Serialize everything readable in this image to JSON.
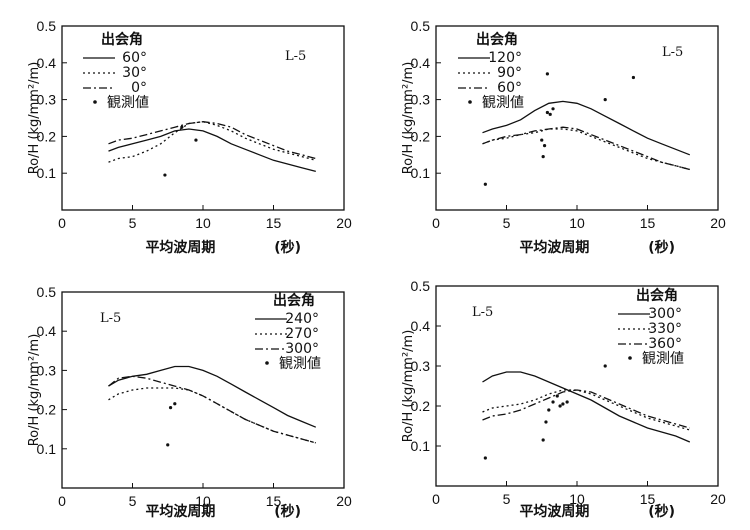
{
  "chart_data": [
    {
      "type": "line",
      "panel_code": "L-5",
      "ylabel": "Ro/H (kg/mm²/m)",
      "xlabel": "平均波周期",
      "xunit": "(秒)",
      "legend_title": "出会角",
      "xlim": [
        0,
        20
      ],
      "ylim": [
        0,
        0.5
      ],
      "xticks": [
        0,
        5,
        10,
        15,
        20
      ],
      "yticks": [
        0.1,
        0.2,
        0.3,
        0.4,
        0.5
      ],
      "series": [
        {
          "name": "60°",
          "style": "solid",
          "x": [
            3.3,
            4,
            5,
            6,
            7,
            8,
            9,
            10,
            11,
            12,
            13,
            14,
            15,
            16,
            17,
            18
          ],
          "y": [
            0.16,
            0.17,
            0.18,
            0.19,
            0.2,
            0.215,
            0.22,
            0.215,
            0.2,
            0.18,
            0.165,
            0.15,
            0.135,
            0.125,
            0.115,
            0.105
          ]
        },
        {
          "name": "30°",
          "style": "dotted",
          "x": [
            3.3,
            4,
            5,
            6,
            7,
            8,
            9,
            10,
            11,
            12,
            13,
            14,
            15,
            16,
            17,
            18
          ],
          "y": [
            0.13,
            0.14,
            0.145,
            0.16,
            0.18,
            0.21,
            0.235,
            0.24,
            0.23,
            0.215,
            0.195,
            0.18,
            0.165,
            0.155,
            0.145,
            0.135
          ]
        },
        {
          "name": "0°",
          "style": "dashdot",
          "x": [
            3.3,
            4,
            5,
            6,
            7,
            8,
            9,
            10,
            11,
            12,
            13,
            14,
            15,
            16,
            17,
            18
          ],
          "y": [
            0.18,
            0.19,
            0.195,
            0.205,
            0.215,
            0.225,
            0.235,
            0.24,
            0.235,
            0.225,
            0.205,
            0.19,
            0.175,
            0.16,
            0.15,
            0.14
          ]
        }
      ],
      "observed_label": "観測値",
      "observed": [
        [
          7.3,
          0.095
        ],
        [
          9.5,
          0.19
        ],
        [
          8.5,
          0.225
        ]
      ]
    },
    {
      "type": "line",
      "panel_code": "L-5",
      "ylabel": "Ro/H (kg/mm²/m)",
      "xlabel": "平均波周期",
      "xunit": "(秒)",
      "legend_title": "出会角",
      "xlim": [
        0,
        20
      ],
      "ylim": [
        0,
        0.5
      ],
      "xticks": [
        0,
        5,
        10,
        15,
        20
      ],
      "yticks": [
        0.1,
        0.2,
        0.3,
        0.4,
        0.5
      ],
      "series": [
        {
          "name": "120°",
          "style": "solid",
          "x": [
            3.3,
            4,
            5,
            6,
            7,
            8,
            9,
            10,
            11,
            12,
            13,
            14,
            15,
            16,
            17,
            18
          ],
          "y": [
            0.21,
            0.22,
            0.23,
            0.245,
            0.27,
            0.29,
            0.295,
            0.29,
            0.275,
            0.255,
            0.235,
            0.215,
            0.195,
            0.18,
            0.165,
            0.15
          ]
        },
        {
          "name": "90°",
          "style": "dotted",
          "x": [
            3.3,
            4,
            5,
            6,
            7,
            8,
            9,
            10,
            11,
            12,
            13,
            14,
            15,
            16,
            17,
            18
          ],
          "y": [
            0.18,
            0.19,
            0.195,
            0.205,
            0.21,
            0.22,
            0.22,
            0.215,
            0.2,
            0.185,
            0.17,
            0.155,
            0.14,
            0.13,
            0.12,
            0.11
          ]
        },
        {
          "name": "60°",
          "style": "dashdot",
          "x": [
            3.3,
            4,
            5,
            6,
            7,
            8,
            9,
            10,
            11,
            12,
            13,
            14,
            15,
            16,
            17,
            18
          ],
          "y": [
            0.18,
            0.19,
            0.2,
            0.205,
            0.215,
            0.22,
            0.225,
            0.22,
            0.205,
            0.19,
            0.175,
            0.16,
            0.145,
            0.13,
            0.12,
            0.11
          ]
        }
      ],
      "observed_label": "観測値",
      "observed": [
        [
          3.5,
          0.07
        ],
        [
          7.5,
          0.19
        ],
        [
          7.6,
          0.145
        ],
        [
          7.7,
          0.175
        ],
        [
          7.9,
          0.265
        ],
        [
          8.1,
          0.26
        ],
        [
          8.3,
          0.275
        ],
        [
          7.9,
          0.37
        ],
        [
          12,
          0.3
        ],
        [
          14,
          0.36
        ]
      ]
    },
    {
      "type": "line",
      "panel_code": "L-5",
      "ylabel": "Ro/H (kg/mm²/m)",
      "xlabel": "平均波周期",
      "xunit": "(秒)",
      "legend_title": "出会角",
      "xlim": [
        0,
        20
      ],
      "ylim": [
        0,
        0.5
      ],
      "xticks": [
        0,
        5,
        10,
        15,
        20
      ],
      "yticks": [
        0.1,
        0.2,
        0.3,
        0.4,
        0.5
      ],
      "series": [
        {
          "name": "240°",
          "style": "solid",
          "x": [
            3.3,
            4,
            5,
            6,
            7,
            8,
            9,
            10,
            11,
            12,
            13,
            14,
            15,
            16,
            17,
            18
          ],
          "y": [
            0.26,
            0.275,
            0.285,
            0.29,
            0.3,
            0.31,
            0.31,
            0.3,
            0.285,
            0.265,
            0.245,
            0.225,
            0.205,
            0.185,
            0.17,
            0.155
          ]
        },
        {
          "name": "270°",
          "style": "dotted",
          "x": [
            3.3,
            4,
            5,
            6,
            7,
            8,
            9,
            10,
            11,
            12,
            13,
            14,
            15,
            16,
            17,
            18
          ],
          "y": [
            0.225,
            0.24,
            0.25,
            0.255,
            0.255,
            0.255,
            0.25,
            0.235,
            0.215,
            0.195,
            0.175,
            0.16,
            0.145,
            0.135,
            0.125,
            0.115
          ]
        },
        {
          "name": "300°",
          "style": "dashdot",
          "x": [
            3.3,
            4,
            5,
            6,
            7,
            8,
            9,
            10,
            11,
            12,
            13,
            14,
            15,
            16,
            17,
            18
          ],
          "y": [
            0.26,
            0.28,
            0.285,
            0.28,
            0.27,
            0.26,
            0.25,
            0.235,
            0.215,
            0.195,
            0.175,
            0.16,
            0.145,
            0.135,
            0.125,
            0.115
          ]
        }
      ],
      "observed_label": "観測値",
      "observed": [
        [
          7.5,
          0.11
        ],
        [
          7.7,
          0.205
        ],
        [
          8.0,
          0.215
        ]
      ]
    },
    {
      "type": "line",
      "panel_code": "L-5",
      "ylabel": "Ro/H (kg/mm²/m)",
      "xlabel": "平均波周期",
      "xunit": "(秒)",
      "legend_title": "出会角",
      "xlim": [
        0,
        20
      ],
      "ylim": [
        0,
        0.5
      ],
      "xticks": [
        0,
        5,
        10,
        15,
        20
      ],
      "yticks": [
        0.1,
        0.2,
        0.3,
        0.4,
        0.5
      ],
      "series": [
        {
          "name": "300°",
          "style": "solid",
          "x": [
            3.3,
            4,
            5,
            6,
            7,
            8,
            9,
            10,
            11,
            12,
            13,
            14,
            15,
            16,
            17,
            18
          ],
          "y": [
            0.26,
            0.275,
            0.285,
            0.285,
            0.275,
            0.26,
            0.245,
            0.23,
            0.215,
            0.195,
            0.175,
            0.16,
            0.145,
            0.135,
            0.125,
            0.11
          ]
        },
        {
          "name": "330°",
          "style": "dotted",
          "x": [
            3.3,
            4,
            5,
            6,
            7,
            8,
            9,
            10,
            11,
            12,
            13,
            14,
            15,
            16,
            17,
            18
          ],
          "y": [
            0.185,
            0.195,
            0.2,
            0.205,
            0.215,
            0.23,
            0.24,
            0.24,
            0.23,
            0.215,
            0.2,
            0.185,
            0.17,
            0.16,
            0.15,
            0.14
          ]
        },
        {
          "name": "360°",
          "style": "dashdot",
          "x": [
            3.3,
            4,
            5,
            6,
            7,
            8,
            9,
            10,
            11,
            12,
            13,
            14,
            15,
            16,
            17,
            18
          ],
          "y": [
            0.165,
            0.175,
            0.18,
            0.19,
            0.205,
            0.22,
            0.235,
            0.24,
            0.235,
            0.22,
            0.205,
            0.19,
            0.175,
            0.165,
            0.155,
            0.145
          ]
        }
      ],
      "observed_label": "観測値",
      "observed": [
        [
          3.5,
          0.07
        ],
        [
          7.6,
          0.115
        ],
        [
          7.8,
          0.16
        ],
        [
          8.0,
          0.19
        ],
        [
          8.3,
          0.21
        ],
        [
          8.6,
          0.225
        ],
        [
          8.8,
          0.2
        ],
        [
          9.0,
          0.205
        ],
        [
          9.3,
          0.21
        ],
        [
          12,
          0.3
        ]
      ]
    }
  ]
}
